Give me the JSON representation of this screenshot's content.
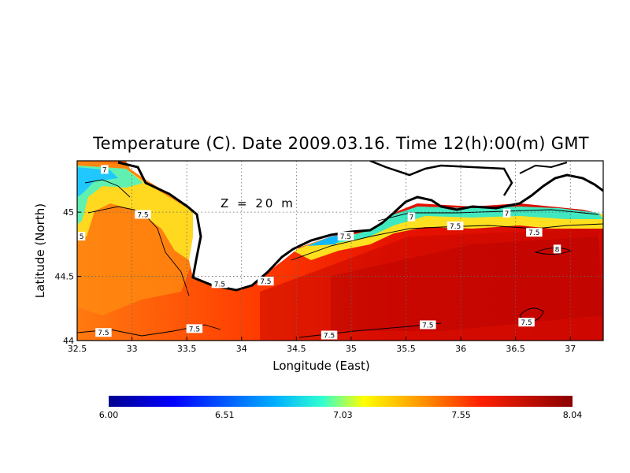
{
  "title": "Temperature (C). Date 2009.03.16. Time 12(h):00(m) GMT",
  "depth_label": "Z = 20 m",
  "chart_data": {
    "type": "heatmap",
    "variable": "Temperature (C)",
    "date": "2009.03.16",
    "time": "12(h):00(m) GMT",
    "depth": "Z = 20 m",
    "xlabel": "Longitude (East)",
    "ylabel": "Latitude (North)",
    "xlim": [
      32.5,
      37.3
    ],
    "ylim": [
      44.0,
      45.4
    ],
    "xticks": [
      32.5,
      33,
      33.5,
      34,
      34.5,
      35,
      35.5,
      36,
      36.5,
      37
    ],
    "xtick_labels": [
      "32.5",
      "33",
      "33.5",
      "34",
      "34.5",
      "35",
      "35.5",
      "36",
      "36.5",
      "37"
    ],
    "yticks": [
      44,
      44.5,
      45
    ],
    "ytick_labels": [
      "44",
      "44.5",
      "45"
    ],
    "grid": true,
    "colorbar": {
      "min": 6.0,
      "max": 8.04,
      "tick_values": [
        6.0,
        6.51,
        7.03,
        7.55,
        8.04
      ],
      "tick_labels": [
        "6.00",
        "6.51",
        "7.03",
        "7.55",
        "8.04"
      ],
      "colormap": [
        "#00008f",
        "#0000ff",
        "#00a0ff",
        "#20ffe0",
        "#ffff00",
        "#ff8000",
        "#ff0000",
        "#8a0000"
      ]
    },
    "contour_labels": [
      {
        "text": "7",
        "lon": 32.75,
        "lat": 45.33
      },
      {
        "text": "7.5",
        "lon": 33.1,
        "lat": 44.98
      },
      {
        "text": "5",
        "lon": 32.54,
        "lat": 44.81
      },
      {
        "text": "7.5",
        "lon": 33.8,
        "lat": 44.44
      },
      {
        "text": "7.5",
        "lon": 34.22,
        "lat": 44.46
      },
      {
        "text": "7.5",
        "lon": 34.95,
        "lat": 44.81
      },
      {
        "text": "7",
        "lon": 35.55,
        "lat": 44.96
      },
      {
        "text": "7.5",
        "lon": 35.95,
        "lat": 44.89
      },
      {
        "text": "7",
        "lon": 36.42,
        "lat": 44.99
      },
      {
        "text": "7.5",
        "lon": 36.67,
        "lat": 44.84
      },
      {
        "text": "8",
        "lon": 36.88,
        "lat": 44.71
      },
      {
        "text": "7.5",
        "lon": 32.74,
        "lat": 44.06
      },
      {
        "text": "7.5",
        "lon": 33.57,
        "lat": 44.09
      },
      {
        "text": "7.5",
        "lon": 34.8,
        "lat": 44.04
      },
      {
        "text": "7.5",
        "lon": 35.7,
        "lat": 44.12
      },
      {
        "text": "7.5",
        "lon": 36.6,
        "lat": 44.14
      }
    ]
  }
}
